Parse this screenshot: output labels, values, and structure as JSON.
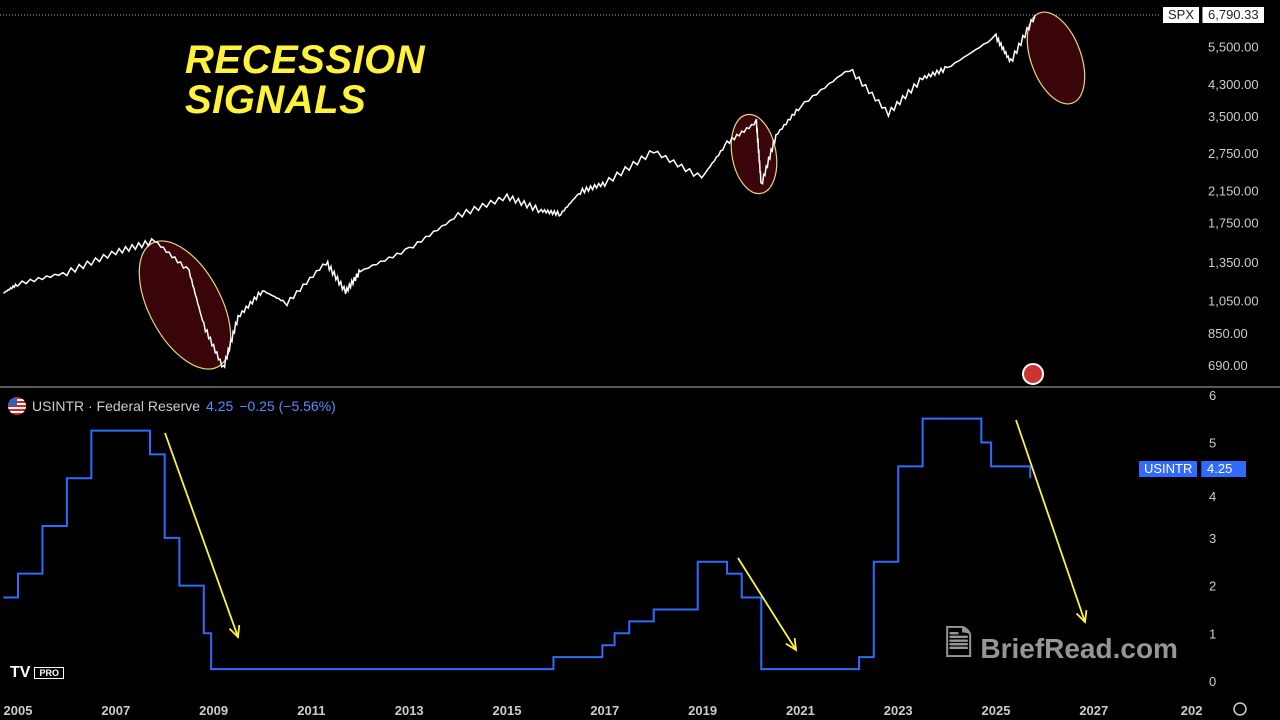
{
  "title_lines": [
    "RECESSION",
    "SIGNALS"
  ],
  "upper": {
    "symbol": "SPX",
    "last": "6,790.33",
    "ticks": [
      "6,790.33",
      "5,500.00",
      "4,300.00",
      "3,500.00",
      "2,750.00",
      "2,150.00",
      "1,750.00",
      "1,350.00",
      "1,050.00",
      "850.00",
      "690.00"
    ]
  },
  "lower": {
    "legend_name": "USINTR · Federal Reserve",
    "legend_value": "4.25",
    "legend_change": "−0.25 (−5.56%)",
    "tag_name": "USINTR",
    "tag_value": "4.25",
    "ticks": [
      "6",
      "5",
      "4",
      "3",
      "2",
      "1",
      "0"
    ]
  },
  "x_ticks": [
    "2005",
    "2007",
    "2009",
    "2011",
    "2013",
    "2015",
    "2017",
    "2019",
    "2021",
    "2023",
    "2025",
    "2027",
    "202"
  ],
  "logo": {
    "text": "TV",
    "badge": "PRO"
  },
  "watermark": "BriefRead.com",
  "colors": {
    "spx": "#ffffff",
    "rate": "#2f6bff",
    "annotation": "#fff23a",
    "ellipse_fill": "#3a0508"
  },
  "chart_data": [
    {
      "type": "line",
      "series": [
        {
          "name": "SPX",
          "x": [
            2004.7,
            2005,
            2006,
            2007,
            2007.8,
            2008.5,
            2008.8,
            2009.2,
            2009.5,
            2010,
            2010.5,
            2011.3,
            2011.7,
            2012,
            2013,
            2014,
            2015,
            2015.7,
            2016.1,
            2016.5,
            2017,
            2018,
            2018.98,
            2019.5,
            2020.1,
            2020.2,
            2020.5,
            2021,
            2022,
            2022.8,
            2023.5,
            2024,
            2025,
            2025.3,
            2025.8
          ],
          "y": [
            1110,
            1180,
            1270,
            1450,
            1560,
            1280,
            900,
            680,
            950,
            1130,
            1040,
            1360,
            1120,
            1280,
            1480,
            1840,
            2080,
            1900,
            1860,
            2150,
            2270,
            2800,
            2350,
            2950,
            3380,
            2240,
            3100,
            3750,
            4790,
            3580,
            4500,
            4800,
            5900,
            5000,
            6790
          ]
        }
      ],
      "yscale": "log",
      "ylim": [
        650,
        7000
      ]
    },
    {
      "type": "line",
      "step": true,
      "series": [
        {
          "name": "USINTR",
          "x": [
            2004.7,
            2005,
            2005.5,
            2006,
            2006.5,
            2007.6,
            2007.7,
            2008,
            2008.3,
            2008.8,
            2008.95,
            2015.95,
            2016.95,
            2017.2,
            2017.5,
            2018,
            2018.9,
            2019.5,
            2019.8,
            2020.2,
            2022.2,
            2022.5,
            2023,
            2023.5,
            2024.7,
            2024.9,
            2025.7
          ],
          "y": [
            1.75,
            2.25,
            3.25,
            4.25,
            5.25,
            5.25,
            4.75,
            3.0,
            2.0,
            1.0,
            0.25,
            0.5,
            0.75,
            1.0,
            1.25,
            1.5,
            2.5,
            2.25,
            1.75,
            0.25,
            0.5,
            2.5,
            4.5,
            5.5,
            5.0,
            4.5,
            4.25
          ]
        }
      ],
      "ylim": [
        0,
        6
      ]
    }
  ]
}
